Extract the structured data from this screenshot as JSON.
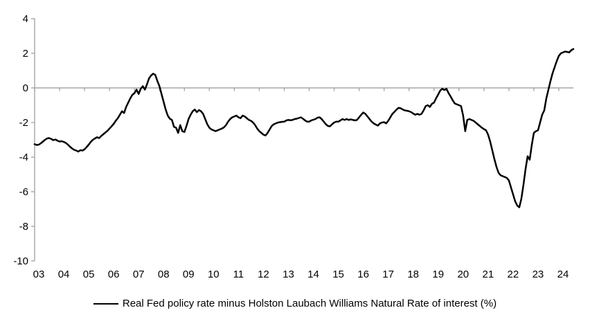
{
  "figure": {
    "background": "#ffffff",
    "axis_color": "#a6a6a6",
    "line_color": "#000000",
    "text_color": "#000000"
  },
  "legend": {
    "label": "Real Fed policy rate minus Holston Laubach Williams Natural Rate of interest (%)"
  },
  "chart_data": {
    "type": "line",
    "title": "",
    "xlabel": "",
    "ylabel": "",
    "ylim": [
      -10,
      4
    ],
    "y_ticks": [
      4,
      2,
      0,
      -2,
      -4,
      -6,
      -8,
      -10
    ],
    "x_tick_labels": [
      "03",
      "04",
      "05",
      "06",
      "07",
      "08",
      "09",
      "10",
      "11",
      "12",
      "13",
      "14",
      "15",
      "16",
      "17",
      "18",
      "19",
      "20",
      "21",
      "22",
      "23",
      "24"
    ],
    "x_axis_position": "zero-line",
    "grid": false,
    "legend_position": "bottom",
    "series": [
      {
        "name": "Real Fed policy rate minus Holston Laubach Williams Natural Rate of interest (%)",
        "frequency": "monthly",
        "start": "2003-01",
        "end": "2024-08",
        "values": [
          -3.25,
          -3.3,
          -3.28,
          -3.2,
          -3.1,
          -3.0,
          -2.92,
          -2.9,
          -2.95,
          -3.02,
          -2.98,
          -3.05,
          -3.1,
          -3.08,
          -3.12,
          -3.18,
          -3.28,
          -3.4,
          -3.5,
          -3.58,
          -3.62,
          -3.68,
          -3.6,
          -3.62,
          -3.55,
          -3.42,
          -3.28,
          -3.12,
          -3.0,
          -2.92,
          -2.85,
          -2.9,
          -2.78,
          -2.68,
          -2.58,
          -2.48,
          -2.35,
          -2.22,
          -2.08,
          -1.9,
          -1.75,
          -1.55,
          -1.35,
          -1.45,
          -1.1,
          -0.85,
          -0.6,
          -0.4,
          -0.3,
          -0.1,
          -0.35,
          -0.05,
          0.1,
          -0.1,
          0.2,
          0.55,
          0.72,
          0.82,
          0.75,
          0.4,
          0.1,
          -0.35,
          -0.8,
          -1.25,
          -1.6,
          -1.78,
          -1.85,
          -2.25,
          -2.3,
          -2.6,
          -2.15,
          -2.5,
          -2.55,
          -2.2,
          -1.8,
          -1.55,
          -1.35,
          -1.25,
          -1.4,
          -1.28,
          -1.35,
          -1.5,
          -1.8,
          -2.1,
          -2.3,
          -2.4,
          -2.45,
          -2.5,
          -2.45,
          -2.4,
          -2.35,
          -2.28,
          -2.15,
          -1.95,
          -1.8,
          -1.7,
          -1.65,
          -1.6,
          -1.7,
          -1.75,
          -1.6,
          -1.65,
          -1.75,
          -1.85,
          -1.9,
          -2.0,
          -2.15,
          -2.35,
          -2.5,
          -2.6,
          -2.7,
          -2.75,
          -2.6,
          -2.4,
          -2.2,
          -2.1,
          -2.05,
          -2.0,
          -1.98,
          -1.96,
          -1.95,
          -1.88,
          -1.85,
          -1.87,
          -1.85,
          -1.8,
          -1.78,
          -1.74,
          -1.7,
          -1.78,
          -1.88,
          -1.95,
          -1.95,
          -1.88,
          -1.84,
          -1.8,
          -1.72,
          -1.7,
          -1.8,
          -1.95,
          -2.1,
          -2.2,
          -2.22,
          -2.1,
          -2.0,
          -1.95,
          -1.95,
          -1.88,
          -1.8,
          -1.85,
          -1.8,
          -1.85,
          -1.82,
          -1.85,
          -1.88,
          -1.85,
          -1.7,
          -1.55,
          -1.42,
          -1.5,
          -1.65,
          -1.8,
          -1.95,
          -2.05,
          -2.12,
          -2.18,
          -2.05,
          -2.0,
          -1.98,
          -2.05,
          -1.9,
          -1.7,
          -1.5,
          -1.38,
          -1.25,
          -1.15,
          -1.18,
          -1.25,
          -1.3,
          -1.32,
          -1.35,
          -1.4,
          -1.48,
          -1.55,
          -1.5,
          -1.55,
          -1.5,
          -1.3,
          -1.05,
          -1.0,
          -1.1,
          -0.92,
          -0.85,
          -0.6,
          -0.38,
          -0.15,
          -0.05,
          -0.12,
          -0.05,
          -0.3,
          -0.5,
          -0.72,
          -0.9,
          -0.95,
          -1.0,
          -1.05,
          -1.6,
          -2.5,
          -1.85,
          -1.8,
          -1.85,
          -1.9,
          -2.0,
          -2.1,
          -2.2,
          -2.3,
          -2.38,
          -2.45,
          -2.7,
          -3.1,
          -3.6,
          -4.1,
          -4.55,
          -4.9,
          -5.05,
          -5.1,
          -5.15,
          -5.2,
          -5.35,
          -5.75,
          -6.15,
          -6.55,
          -6.8,
          -6.9,
          -6.4,
          -5.6,
          -4.7,
          -3.95,
          -4.15,
          -3.3,
          -2.6,
          -2.5,
          -2.45,
          -2.0,
          -1.55,
          -1.3,
          -0.6,
          -0.1,
          0.4,
          0.85,
          1.2,
          1.55,
          1.85,
          2.0,
          2.05,
          2.1,
          2.08,
          2.05,
          2.18,
          2.25
        ]
      }
    ]
  }
}
